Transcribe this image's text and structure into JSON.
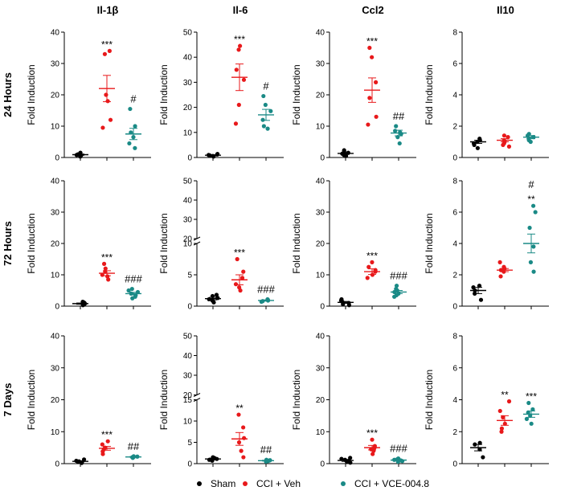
{
  "columns": [
    "Il-1β",
    "Il-6",
    "Ccl2",
    "Il10"
  ],
  "rows": [
    "24 Hours",
    "72 Hours",
    "7 Days"
  ],
  "ylabel": "Fold Induction",
  "legend": [
    {
      "label": "Sham",
      "color": "#000000"
    },
    {
      "label": "CCI + Veh",
      "color": "#e8191b"
    },
    {
      "label": "CCI + VCE-004.8",
      "color": "#1a8a86"
    }
  ],
  "chart_data": [
    {
      "type": "scatter",
      "row": "24 Hours",
      "column": "Il-1β",
      "ylim": [
        0,
        40
      ],
      "yticks": [
        "0",
        "10",
        "20",
        "30",
        "40"
      ],
      "groups": [
        {
          "points": [
            0.3,
            0.6,
            0.8,
            1.0,
            1.2,
            1.5
          ],
          "mean": 0.9,
          "sem": 0.2
        },
        {
          "points": [
            9.5,
            12,
            18,
            20,
            33,
            34
          ],
          "mean": 22,
          "sem": 4.2,
          "annotation": "***"
        },
        {
          "points": [
            3,
            4.5,
            6.5,
            8,
            10,
            15.5
          ],
          "mean": 7.5,
          "sem": 1.8,
          "annotation": "#"
        }
      ]
    },
    {
      "type": "scatter",
      "row": "24 Hours",
      "column": "Il-6",
      "ylim": [
        0,
        50
      ],
      "yticks": [
        "0",
        "10",
        "20",
        "30",
        "40",
        "50"
      ],
      "groups": [
        {
          "points": [
            0.4,
            0.6,
            0.8,
            1.0,
            1.2,
            1.4
          ],
          "mean": 0.9,
          "sem": 0.2
        },
        {
          "points": [
            13.5,
            21,
            31,
            35,
            43,
            44.5
          ],
          "mean": 32,
          "sem": 5.3,
          "annotation": "***"
        },
        {
          "points": [
            11.5,
            12.5,
            15,
            18.5,
            21,
            24.5
          ],
          "mean": 17,
          "sem": 2.2,
          "annotation": "#"
        }
      ]
    },
    {
      "type": "scatter",
      "row": "24 Hours",
      "column": "Ccl2",
      "ylim": [
        0,
        40
      ],
      "yticks": [
        "0",
        "10",
        "20",
        "30",
        "40"
      ],
      "groups": [
        {
          "points": [
            0.5,
            0.8,
            1.2,
            1.5,
            2.0,
            2.3
          ],
          "mean": 1.3,
          "sem": 0.3
        },
        {
          "points": [
            10.5,
            13,
            19,
            24,
            32,
            35
          ],
          "mean": 21.5,
          "sem": 3.9,
          "annotation": "***"
        },
        {
          "points": [
            4.5,
            6.5,
            7.5,
            8,
            8.5,
            10
          ],
          "mean": 7.8,
          "sem": 0.9,
          "annotation": "##"
        }
      ]
    },
    {
      "type": "scatter",
      "row": "24 Hours",
      "column": "Il10",
      "ylim": [
        0,
        8
      ],
      "yticks": [
        "0",
        "2",
        "4",
        "6",
        "8"
      ],
      "groups": [
        {
          "points": [
            0.6,
            0.8,
            0.9,
            1.0,
            1.1,
            1.2
          ],
          "mean": 1.0,
          "sem": 0.1
        },
        {
          "points": [
            0.7,
            0.8,
            0.9,
            1.0,
            1.1,
            1.3,
            1.4
          ],
          "mean": 1.1,
          "sem": 0.1
        },
        {
          "points": [
            1.0,
            1.1,
            1.2,
            1.3,
            1.4,
            1.5
          ],
          "mean": 1.3,
          "sem": 0.1
        }
      ]
    },
    {
      "type": "scatter",
      "row": "72 Hours",
      "column": "Il-1β",
      "ylim": [
        0,
        40
      ],
      "yticks": [
        "0",
        "10",
        "20",
        "30",
        "40"
      ],
      "groups": [
        {
          "points": [
            0.3,
            0.5,
            0.8,
            1.0,
            1.2,
            1.4
          ],
          "mean": 0.8,
          "sem": 0.2
        },
        {
          "points": [
            8.5,
            9.5,
            10,
            11,
            12,
            13.5
          ],
          "mean": 10.5,
          "sem": 0.8,
          "annotation": "***"
        },
        {
          "points": [
            2.5,
            3,
            3.5,
            4,
            4.5,
            5,
            5.5
          ],
          "mean": 4.0,
          "sem": 0.4,
          "annotation": "###"
        }
      ]
    },
    {
      "type": "scatter",
      "row": "72 Hours",
      "column": "Il-6",
      "ylim": [
        0,
        50
      ],
      "yticks": [
        "0",
        "5",
        "10",
        "20",
        "30",
        "40",
        "50"
      ],
      "axis_break": [
        10,
        20
      ],
      "groups": [
        {
          "points": [
            0.6,
            0.9,
            1.1,
            1.3,
            1.6,
            1.8
          ],
          "mean": 1.2,
          "sem": 0.2
        },
        {
          "points": [
            2.5,
            3,
            3.5,
            4.5,
            5.5,
            7.5
          ],
          "mean": 4.2,
          "sem": 0.8,
          "annotation": "***"
        },
        {
          "points": [
            0.7,
            0.8,
            0.9,
            1.0,
            1.1
          ],
          "mean": 0.9,
          "sem": 0.1,
          "annotation": "###"
        }
      ]
    },
    {
      "type": "scatter",
      "row": "72 Hours",
      "column": "Ccl2",
      "ylim": [
        0,
        40
      ],
      "yticks": [
        "0",
        "10",
        "20",
        "30",
        "40"
      ],
      "groups": [
        {
          "points": [
            0.3,
            0.6,
            1.0,
            1.4,
            1.8,
            2.2
          ],
          "mean": 1.2,
          "sem": 0.3
        },
        {
          "points": [
            9,
            10,
            11,
            11.5,
            12.5,
            14
          ],
          "mean": 11.0,
          "sem": 0.9,
          "annotation": "***"
        },
        {
          "points": [
            3,
            3.5,
            4,
            4.5,
            5,
            5.5,
            6.5
          ],
          "mean": 4.5,
          "sem": 0.5,
          "annotation": "###"
        }
      ]
    },
    {
      "type": "scatter",
      "row": "72 Hours",
      "column": "Il10",
      "ylim": [
        0,
        8
      ],
      "yticks": [
        "0",
        "2",
        "4",
        "6",
        "8"
      ],
      "groups": [
        {
          "points": [
            0.4,
            0.8,
            1.0,
            1.2,
            1.3
          ],
          "mean": 1.0,
          "sem": 0.2
        },
        {
          "points": [
            1.9,
            2.2,
            2.3,
            2.4,
            2.5,
            2.8
          ],
          "mean": 2.3,
          "sem": 0.1
        },
        {
          "points": [
            2.2,
            2.8,
            3.8,
            5.0,
            6.0,
            6.4
          ],
          "mean": 4.0,
          "sem": 0.6,
          "annotation": "#\n**"
        }
      ]
    },
    {
      "type": "scatter",
      "row": "7 Days",
      "column": "Il-1β",
      "ylim": [
        0,
        40
      ],
      "yticks": [
        "0",
        "10",
        "20",
        "30",
        "40"
      ],
      "groups": [
        {
          "points": [
            0.2,
            0.5,
            0.7,
            0.9,
            1.3
          ],
          "mean": 0.7,
          "sem": 0.2
        },
        {
          "points": [
            3,
            3.8,
            4.5,
            5,
            6,
            7
          ],
          "mean": 4.8,
          "sem": 0.6,
          "annotation": "***"
        },
        {
          "points": [
            1.8,
            2,
            2.1,
            2.2,
            2.3
          ],
          "mean": 2.1,
          "sem": 0.1,
          "annotation": "##"
        }
      ]
    },
    {
      "type": "scatter",
      "row": "7 Days",
      "column": "Il-6",
      "ylim": [
        0,
        50
      ],
      "yticks": [
        "0",
        "5",
        "10",
        "15",
        "20",
        "30",
        "40",
        "50"
      ],
      "axis_break": [
        15,
        20
      ],
      "groups": [
        {
          "points": [
            0.7,
            0.9,
            1.1,
            1.3,
            1.5
          ],
          "mean": 1.1,
          "sem": 0.2
        },
        {
          "points": [
            1.5,
            3,
            5,
            6,
            8.5,
            11.5
          ],
          "mean": 5.8,
          "sem": 1.5,
          "annotation": "**"
        },
        {
          "points": [
            0.5,
            0.6,
            0.7,
            0.8,
            0.9
          ],
          "mean": 0.7,
          "sem": 0.1,
          "annotation": "##"
        }
      ]
    },
    {
      "type": "scatter",
      "row": "7 Days",
      "column": "Ccl2",
      "ylim": [
        0,
        40
      ],
      "yticks": [
        "0",
        "10",
        "20",
        "30",
        "40"
      ],
      "groups": [
        {
          "points": [
            0.3,
            0.6,
            0.9,
            1.2,
            1.5,
            1.8
          ],
          "mean": 1.0,
          "sem": 0.3
        },
        {
          "points": [
            3,
            4,
            4.5,
            5,
            5.5,
            7.5
          ],
          "mean": 5.0,
          "sem": 0.7,
          "annotation": "***"
        },
        {
          "points": [
            0.6,
            0.8,
            1.0,
            1.2,
            1.4,
            1.6
          ],
          "mean": 1.1,
          "sem": 0.2,
          "annotation": "###"
        }
      ]
    },
    {
      "type": "scatter",
      "row": "7 Days",
      "column": "Il10",
      "ylim": [
        0,
        8
      ],
      "yticks": [
        "0",
        "2",
        "4",
        "6",
        "8"
      ],
      "groups": [
        {
          "points": [
            0.4,
            0.9,
            1.2,
            1.3
          ],
          "mean": 1.0,
          "sem": 0.2
        },
        {
          "points": [
            2.0,
            2.2,
            2.5,
            2.9,
            3.3,
            3.9
          ],
          "mean": 2.7,
          "sem": 0.3,
          "annotation": "**"
        },
        {
          "points": [
            2.5,
            2.8,
            3.0,
            3.2,
            3.4,
            3.8
          ],
          "mean": 3.1,
          "sem": 0.2,
          "annotation": "***"
        }
      ]
    }
  ]
}
